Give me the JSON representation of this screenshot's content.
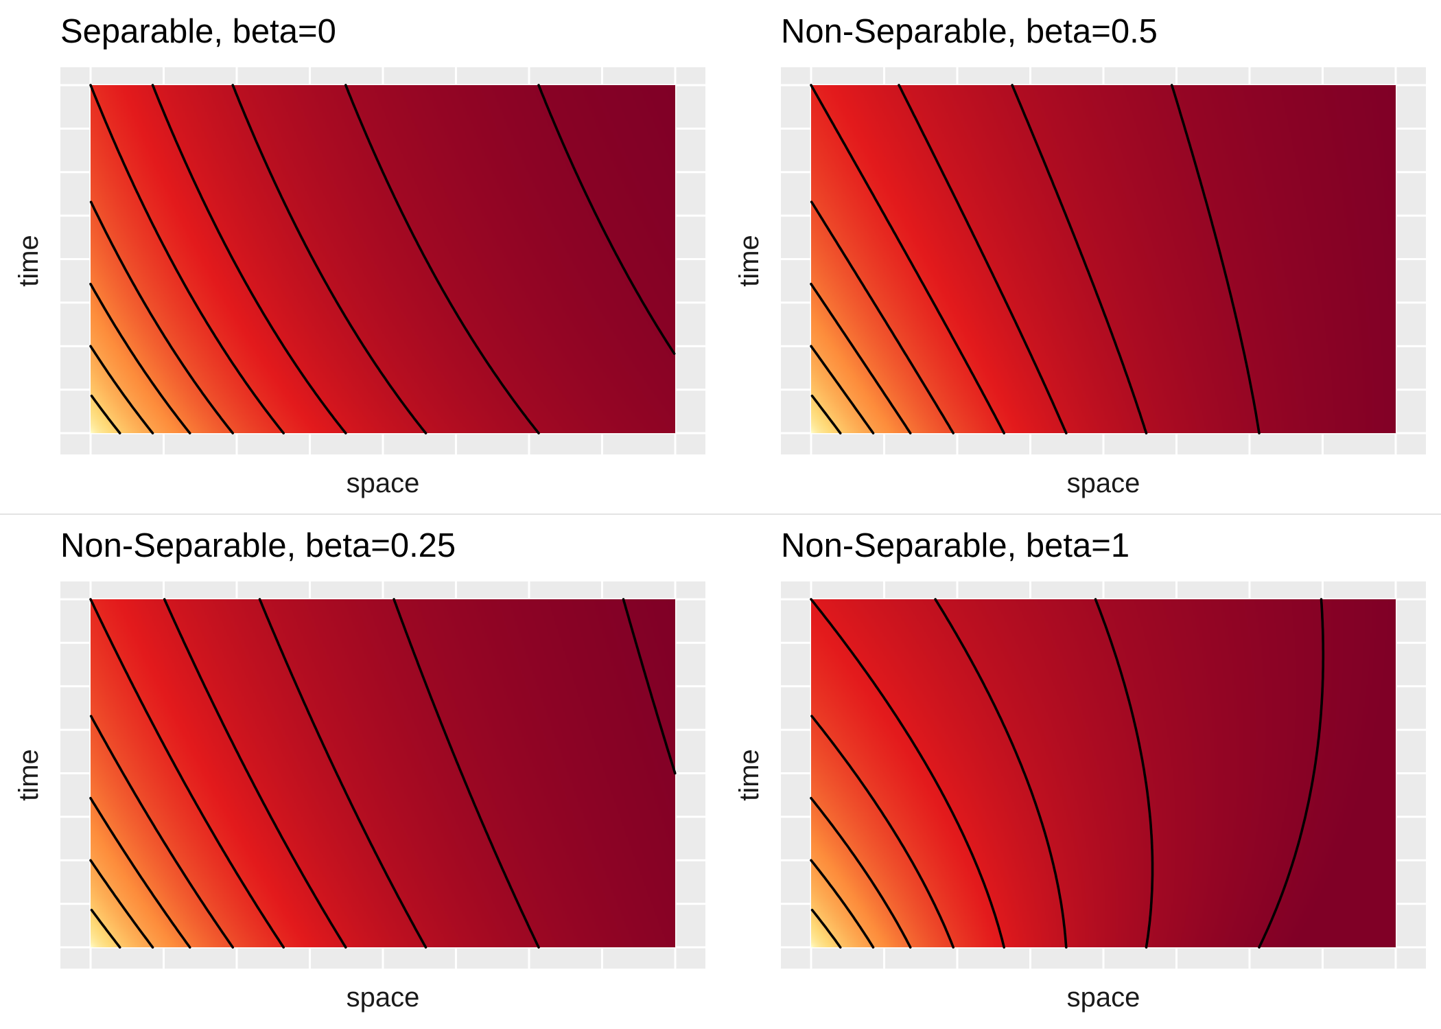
{
  "chart_data": [
    {
      "type": "heatmap",
      "title": "Separable, beta=0",
      "xlabel": "space",
      "ylabel": "time",
      "beta": 0,
      "separable": true,
      "contour_levels": 9,
      "colors": [
        "#800026",
        "#e31a1c",
        "#fd8d3c",
        "#fed976",
        "#ffffcc"
      ],
      "grid": true
    },
    {
      "type": "heatmap",
      "title": "Non-Separable, beta=0.5",
      "xlabel": "space",
      "ylabel": "time",
      "beta": 0.5,
      "separable": false,
      "contour_levels": 9,
      "colors": [
        "#800026",
        "#e31a1c",
        "#fd8d3c",
        "#fed976",
        "#ffffcc"
      ],
      "grid": true
    },
    {
      "type": "heatmap",
      "title": "Non-Separable, beta=0.25",
      "xlabel": "space",
      "ylabel": "time",
      "beta": 0.25,
      "separable": false,
      "contour_levels": 9,
      "colors": [
        "#800026",
        "#e31a1c",
        "#fd8d3c",
        "#fed976",
        "#ffffcc"
      ],
      "grid": true
    },
    {
      "type": "heatmap",
      "title": "Non-Separable,  beta=1",
      "xlabel": "space",
      "ylabel": "time",
      "beta": 1,
      "separable": false,
      "contour_levels": 9,
      "colors": [
        "#800026",
        "#e31a1c",
        "#fd8d3c",
        "#fed976",
        "#ffffcc"
      ],
      "grid": true
    }
  ]
}
